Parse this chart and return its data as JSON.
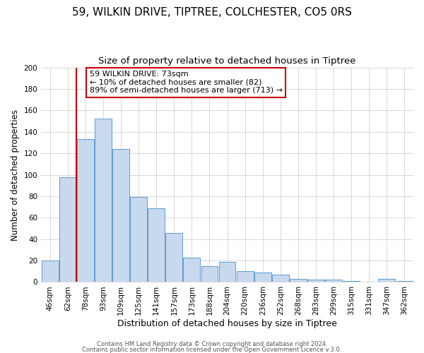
{
  "title": "59, WILKIN DRIVE, TIPTREE, COLCHESTER, CO5 0RS",
  "subtitle": "Size of property relative to detached houses in Tiptree",
  "xlabel": "Distribution of detached houses by size in Tiptree",
  "ylabel": "Number of detached properties",
  "categories": [
    "46sqm",
    "62sqm",
    "78sqm",
    "93sqm",
    "109sqm",
    "125sqm",
    "141sqm",
    "157sqm",
    "173sqm",
    "188sqm",
    "204sqm",
    "220sqm",
    "236sqm",
    "252sqm",
    "268sqm",
    "283sqm",
    "299sqm",
    "315sqm",
    "331sqm",
    "347sqm",
    "362sqm"
  ],
  "values": [
    20,
    98,
    133,
    152,
    124,
    79,
    69,
    46,
    23,
    15,
    19,
    10,
    9,
    7,
    3,
    2,
    2,
    1,
    0,
    3,
    1
  ],
  "bar_color": "#c8d9ed",
  "bar_edge_color": "#5b9bd5",
  "ylim": [
    0,
    200
  ],
  "yticks": [
    0,
    20,
    40,
    60,
    80,
    100,
    120,
    140,
    160,
    180,
    200
  ],
  "vline_x_index": 2,
  "vline_color": "#cc0000",
  "annotation_title": "59 WILKIN DRIVE: 73sqm",
  "annotation_line1": "← 10% of detached houses are smaller (82)",
  "annotation_line2": "89% of semi-detached houses are larger (713) →",
  "annotation_box_color": "#ffffff",
  "annotation_box_edge": "#cc0000",
  "footer1": "Contains HM Land Registry data © Crown copyright and database right 2024.",
  "footer2": "Contains public sector information licensed under the Open Government Licence v.3.0.",
  "title_fontsize": 11,
  "subtitle_fontsize": 9.5,
  "xlabel_fontsize": 9,
  "ylabel_fontsize": 8.5,
  "tick_fontsize": 7.5,
  "annotation_fontsize": 8,
  "footer_fontsize": 6
}
